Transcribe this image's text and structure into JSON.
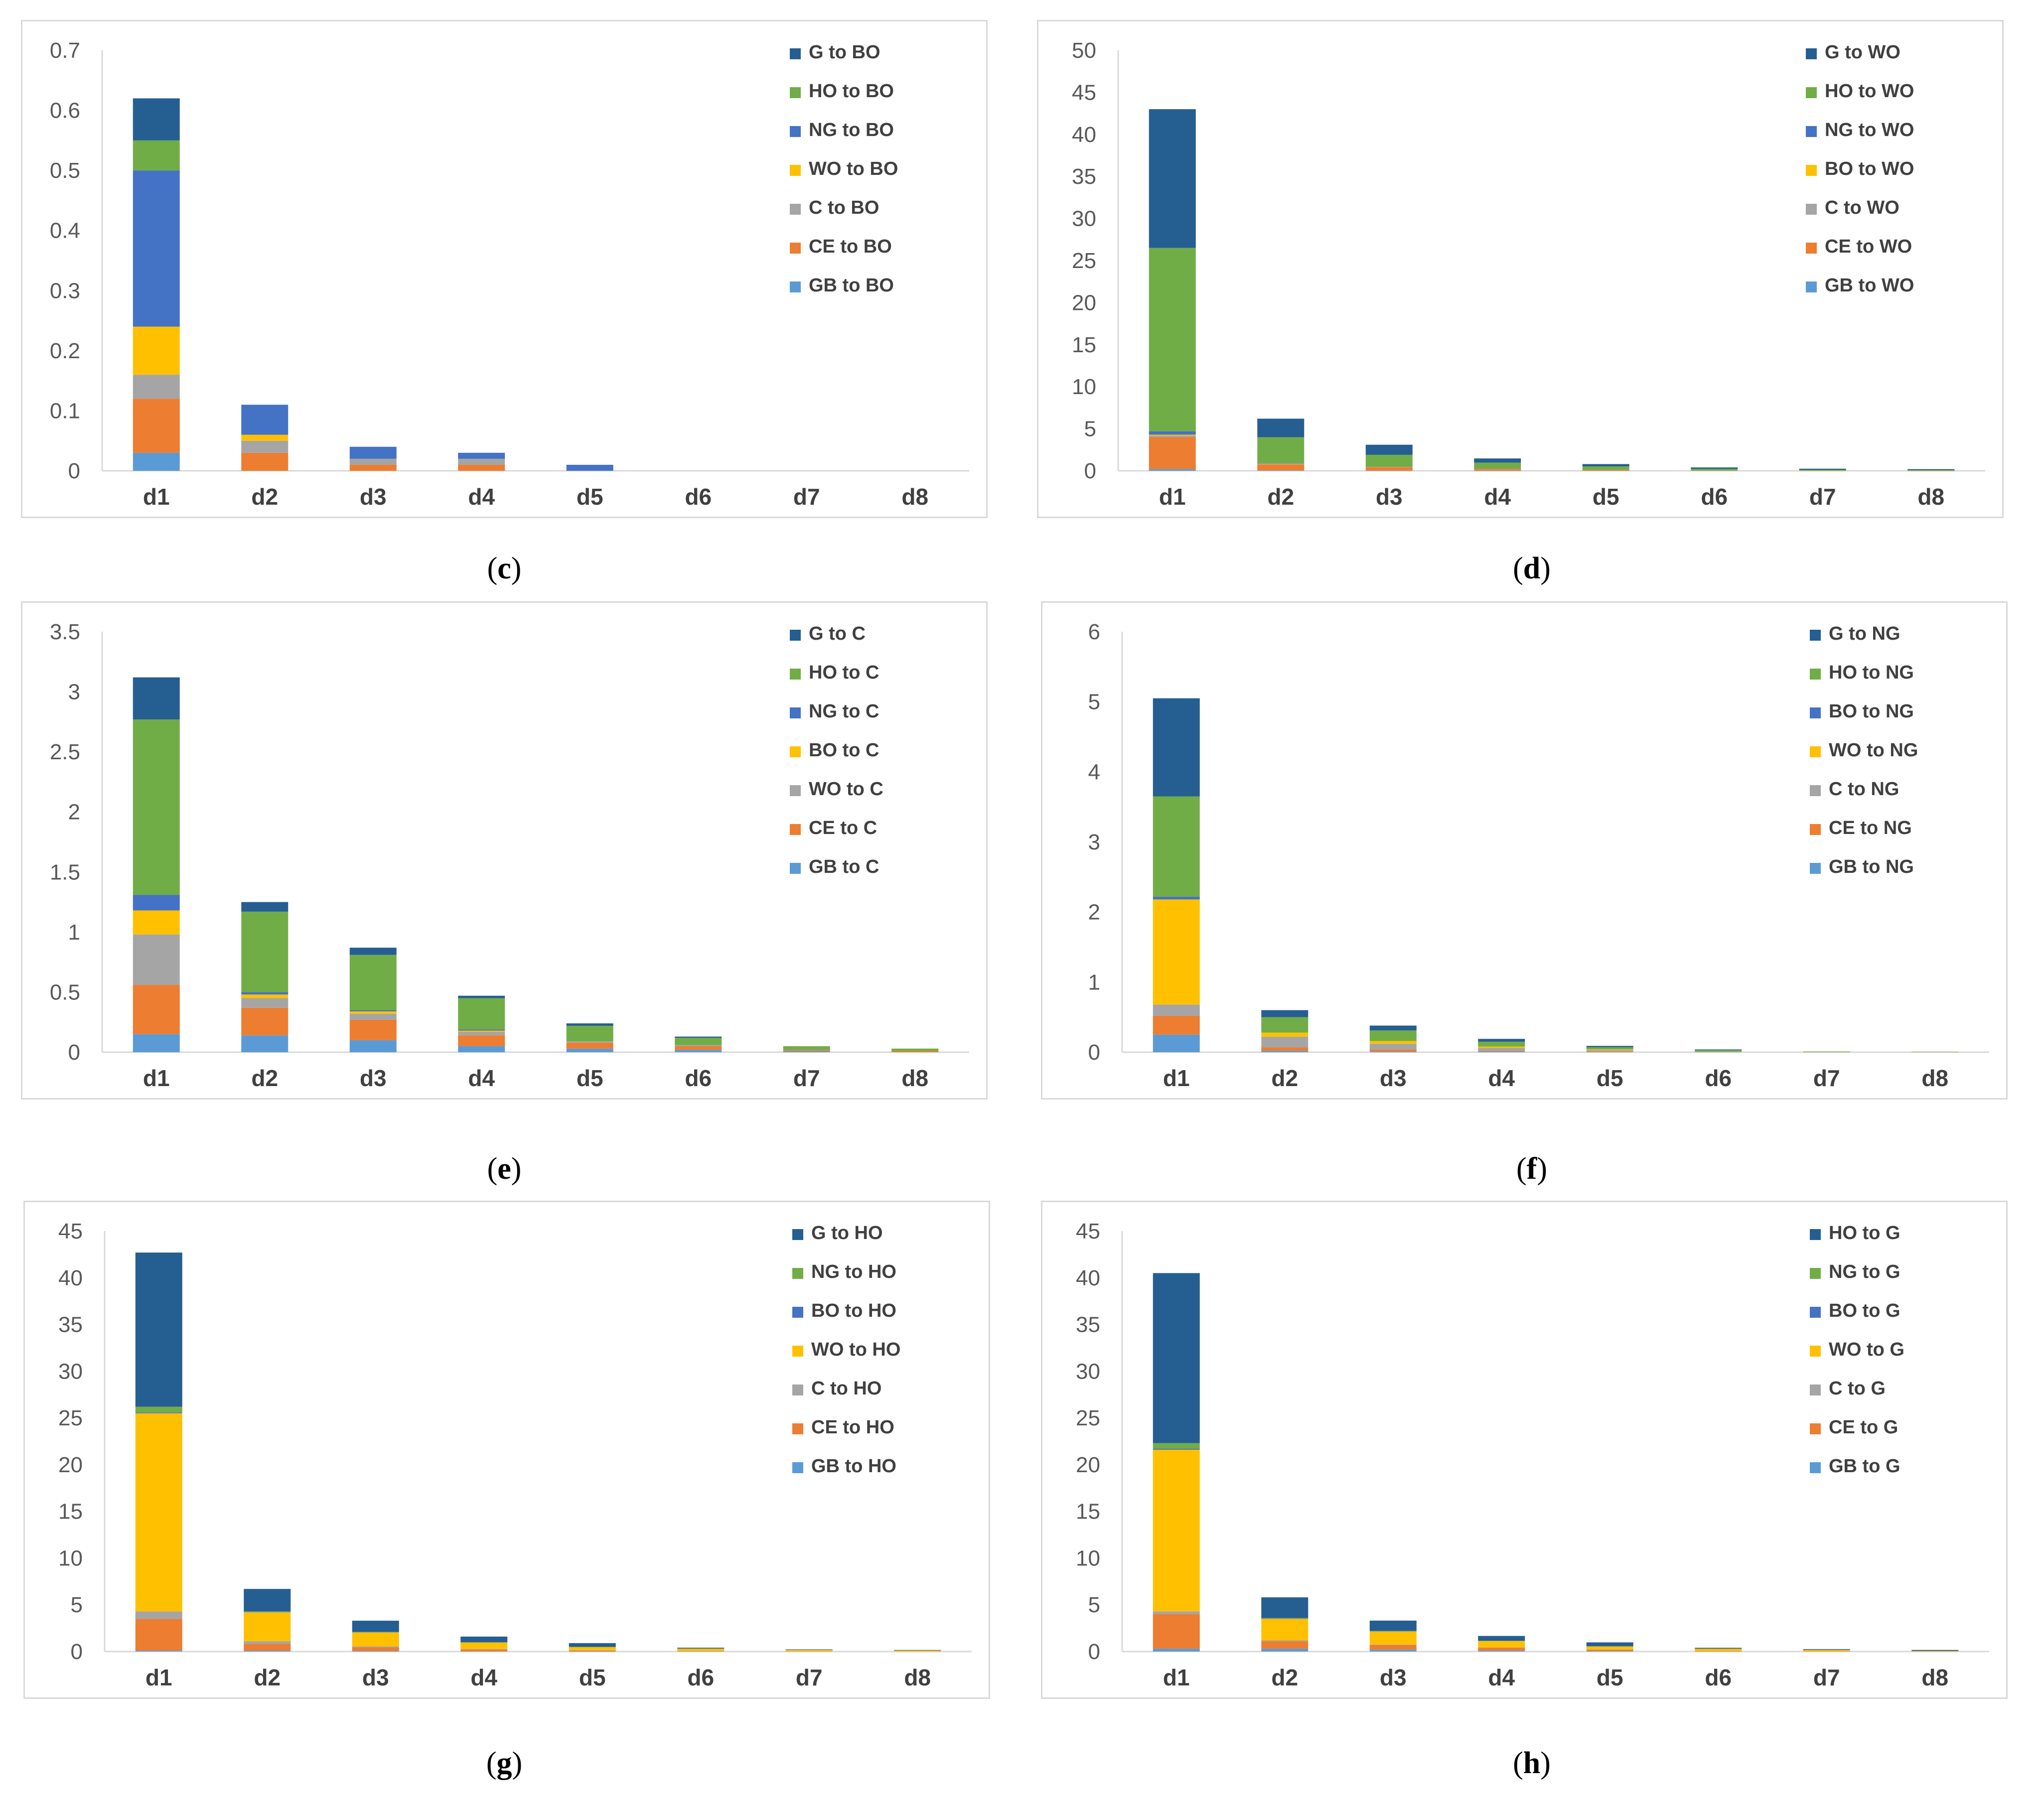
{
  "colors": {
    "GB": "#5b9bd5",
    "CE": "#ed7d31",
    "C": "#a5a5a5",
    "WO": "#ffc000",
    "BO": "#4472c4",
    "NG": "#4472c4",
    "HO": "#70ad47",
    "G": "#255e91",
    "axis": "#d9d9d9",
    "text": "#595959"
  },
  "chart_data": [
    {
      "id": "c",
      "caption_letter": "c",
      "type": "bar",
      "stacked": true,
      "categories": [
        "d1",
        "d2",
        "d3",
        "d4",
        "d5",
        "d6",
        "d7",
        "d8"
      ],
      "ylim": [
        0,
        0.7
      ],
      "yticks": [
        "0",
        "0.1",
        "0.2",
        "0.3",
        "0.4",
        "0.5",
        "0.6",
        "0.7"
      ],
      "series": [
        {
          "name": "GB to BO",
          "color_key": "GB",
          "values": [
            0.03,
            0.0,
            0.0,
            0.0,
            0.0,
            0.0,
            0.0,
            0.0
          ]
        },
        {
          "name": "CE to BO",
          "color_key": "CE",
          "values": [
            0.09,
            0.03,
            0.01,
            0.01,
            0.0,
            0.0,
            0.0,
            0.0
          ]
        },
        {
          "name": "C to BO",
          "color_key": "C",
          "values": [
            0.04,
            0.02,
            0.01,
            0.01,
            0.0,
            0.0,
            0.0,
            0.0
          ]
        },
        {
          "name": "WO to BO",
          "color_key": "WO",
          "values": [
            0.08,
            0.01,
            0.0,
            0.0,
            0.0,
            0.0,
            0.0,
            0.0
          ]
        },
        {
          "name": "NG to BO",
          "color_key": "BO",
          "values": [
            0.26,
            0.05,
            0.02,
            0.01,
            0.01,
            0.0,
            0.0,
            0.0
          ]
        },
        {
          "name": "HO to BO",
          "color_key": "HO",
          "values": [
            0.05,
            0.0,
            0.0,
            0.0,
            0.0,
            0.0,
            0.0,
            0.0
          ]
        },
        {
          "name": "G to BO",
          "color_key": "G",
          "values": [
            0.07,
            0.0,
            0.0,
            0.0,
            0.0,
            0.0,
            0.0,
            0.0
          ]
        }
      ],
      "legend_order": [
        "G to BO",
        "HO to BO",
        "NG to BO",
        "WO to BO",
        "C to BO",
        "CE to BO",
        "GB to BO"
      ]
    },
    {
      "id": "d",
      "caption_letter": "d",
      "type": "bar",
      "stacked": true,
      "categories": [
        "d1",
        "d2",
        "d3",
        "d4",
        "d5",
        "d6",
        "d7",
        "d8"
      ],
      "ylim": [
        0,
        50
      ],
      "yticks": [
        "0",
        "5",
        "10",
        "15",
        "20",
        "25",
        "30",
        "35",
        "40",
        "45",
        "50"
      ],
      "series": [
        {
          "name": "GB to WO",
          "color_key": "GB",
          "values": [
            0.2,
            0.05,
            0.02,
            0.01,
            0.0,
            0.0,
            0.0,
            0.0
          ]
        },
        {
          "name": "CE to WO",
          "color_key": "CE",
          "values": [
            3.8,
            0.7,
            0.4,
            0.2,
            0.1,
            0.03,
            0.02,
            0.01
          ]
        },
        {
          "name": "C  to WO",
          "color_key": "C",
          "values": [
            0.2,
            0.05,
            0.03,
            0.02,
            0.01,
            0.0,
            0.0,
            0.0
          ]
        },
        {
          "name": "BO to WO",
          "color_key": "WO",
          "values": [
            0.1,
            0.05,
            0.03,
            0.02,
            0.01,
            0.0,
            0.0,
            0.0
          ]
        },
        {
          "name": "NG to WO",
          "color_key": "NG",
          "values": [
            0.4,
            0.05,
            0.02,
            0.02,
            0.01,
            0.0,
            0.0,
            0.0
          ]
        },
        {
          "name": "HO to WO",
          "color_key": "HO",
          "values": [
            21.8,
            3.1,
            1.4,
            0.7,
            0.4,
            0.2,
            0.1,
            0.08
          ]
        },
        {
          "name": "G to WO",
          "color_key": "G",
          "values": [
            16.5,
            2.2,
            1.2,
            0.5,
            0.27,
            0.17,
            0.13,
            0.11
          ]
        }
      ],
      "legend_order": [
        "G to WO",
        "HO to WO",
        "NG to WO",
        "BO to WO",
        "C  to WO",
        "CE to WO",
        "GB to WO"
      ]
    },
    {
      "id": "e",
      "caption_letter": "e",
      "type": "bar",
      "stacked": true,
      "categories": [
        "d1",
        "d2",
        "d3",
        "d4",
        "d5",
        "d6",
        "d7",
        "d8"
      ],
      "ylim": [
        0,
        3.5
      ],
      "yticks": [
        "0",
        "0.5",
        "1",
        "1.5",
        "2",
        "2.5",
        "3",
        "3.5"
      ],
      "series": [
        {
          "name": "GB to C",
          "color_key": "GB",
          "values": [
            0.15,
            0.14,
            0.1,
            0.05,
            0.03,
            0.02,
            0.01,
            0.0
          ]
        },
        {
          "name": "CE to C",
          "color_key": "CE",
          "values": [
            0.41,
            0.23,
            0.17,
            0.09,
            0.05,
            0.03,
            0.01,
            0.01
          ]
        },
        {
          "name": "WO to C",
          "color_key": "C",
          "values": [
            0.42,
            0.08,
            0.05,
            0.03,
            0.01,
            0.01,
            0.0,
            0.0
          ]
        },
        {
          "name": "BO to C",
          "color_key": "WO",
          "values": [
            0.2,
            0.03,
            0.02,
            0.01,
            0.0,
            0.0,
            0.0,
            0.0
          ]
        },
        {
          "name": "NG to C",
          "color_key": "NG",
          "values": [
            0.13,
            0.02,
            0.01,
            0.01,
            0.0,
            0.0,
            0.0,
            0.0
          ]
        },
        {
          "name": "HO to C",
          "color_key": "HO",
          "values": [
            1.46,
            0.67,
            0.46,
            0.26,
            0.13,
            0.06,
            0.03,
            0.02
          ]
        },
        {
          "name": "G to C",
          "color_key": "G",
          "values": [
            0.35,
            0.08,
            0.06,
            0.02,
            0.02,
            0.01,
            0.0,
            0.0
          ]
        }
      ],
      "legend_order": [
        "G to C",
        "HO to C",
        "NG to C",
        "BO to C",
        "WO to C",
        "CE to C",
        "GB to C"
      ]
    },
    {
      "id": "f",
      "caption_letter": "f",
      "type": "bar",
      "stacked": true,
      "categories": [
        "d1",
        "d2",
        "d3",
        "d4",
        "d5",
        "d6",
        "d7",
        "d8"
      ],
      "ylim": [
        0,
        6
      ],
      "yticks": [
        "0",
        "1",
        "2",
        "3",
        "4",
        "5",
        "6"
      ],
      "series": [
        {
          "name": "GB to NG",
          "color_key": "GB",
          "values": [
            0.25,
            0.02,
            0.01,
            0.01,
            0.0,
            0.0,
            0.0,
            0.0
          ]
        },
        {
          "name": "CE to NG",
          "color_key": "CE",
          "values": [
            0.27,
            0.05,
            0.03,
            0.01,
            0.01,
            0.0,
            0.0,
            0.0
          ]
        },
        {
          "name": "C to NG",
          "color_key": "C",
          "values": [
            0.16,
            0.15,
            0.08,
            0.04,
            0.02,
            0.01,
            0.0,
            0.0
          ]
        },
        {
          "name": "WO to NG",
          "color_key": "WO",
          "values": [
            1.5,
            0.06,
            0.04,
            0.02,
            0.01,
            0.0,
            0.0,
            0.0
          ]
        },
        {
          "name": "BO to NG",
          "color_key": "BO",
          "values": [
            0.04,
            0.0,
            0.0,
            0.0,
            0.0,
            0.0,
            0.0,
            0.0
          ]
        },
        {
          "name": "HO to NG",
          "color_key": "HO",
          "values": [
            1.43,
            0.22,
            0.15,
            0.07,
            0.03,
            0.02,
            0.01,
            0.005
          ]
        },
        {
          "name": "G to NG",
          "color_key": "G",
          "values": [
            1.4,
            0.1,
            0.07,
            0.04,
            0.02,
            0.01,
            0.0,
            0.0
          ]
        }
      ],
      "legend_order": [
        "G to NG",
        "HO to NG",
        "BO to NG",
        "WO to NG",
        "C to NG",
        "CE to NG",
        "GB to NG"
      ]
    },
    {
      "id": "g",
      "caption_letter": "g",
      "type": "bar",
      "stacked": true,
      "categories": [
        "d1",
        "d2",
        "d3",
        "d4",
        "d5",
        "d6",
        "d7",
        "d8"
      ],
      "ylim": [
        0,
        45
      ],
      "yticks": [
        "0",
        "5",
        "10",
        "15",
        "20",
        "25",
        "30",
        "35",
        "40",
        "45"
      ],
      "series": [
        {
          "name": "GB to HO",
          "color_key": "GB",
          "values": [
            0.1,
            0.1,
            0.05,
            0.02,
            0.01,
            0.0,
            0.0,
            0.0
          ]
        },
        {
          "name": "CE to HO",
          "color_key": "CE",
          "values": [
            3.4,
            0.7,
            0.4,
            0.2,
            0.1,
            0.05,
            0.03,
            0.02
          ]
        },
        {
          "name": "C to HO",
          "color_key": "C",
          "values": [
            0.8,
            0.3,
            0.1,
            0.05,
            0.03,
            0.01,
            0.01,
            0.0
          ]
        },
        {
          "name": "WO to HO",
          "color_key": "WO",
          "values": [
            21.2,
            3.1,
            1.5,
            0.7,
            0.35,
            0.25,
            0.15,
            0.1
          ]
        },
        {
          "name": "BO to HO",
          "color_key": "BO",
          "values": [
            0.1,
            0.05,
            0.02,
            0.01,
            0.0,
            0.0,
            0.0,
            0.0
          ]
        },
        {
          "name": "NG to HO",
          "color_key": "HO",
          "values": [
            0.6,
            0.05,
            0.03,
            0.02,
            0.01,
            0.0,
            0.0,
            0.0
          ]
        },
        {
          "name": "G to HO",
          "color_key": "G",
          "values": [
            16.5,
            2.4,
            1.2,
            0.6,
            0.4,
            0.1,
            0.05,
            0.05
          ]
        }
      ],
      "legend_order": [
        "G to HO",
        "NG to HO",
        "BO to HO",
        "WO to HO",
        "C to HO",
        "CE to HO",
        "GB to HO"
      ]
    },
    {
      "id": "h",
      "caption_letter": "h",
      "type": "bar",
      "stacked": true,
      "categories": [
        "d1",
        "d2",
        "d3",
        "d4",
        "d5",
        "d6",
        "d7",
        "d8"
      ],
      "ylim": [
        0,
        45
      ],
      "yticks": [
        "0",
        "5",
        "10",
        "15",
        "20",
        "25",
        "30",
        "35",
        "40",
        "45"
      ],
      "series": [
        {
          "name": "GB to G",
          "color_key": "GB",
          "values": [
            0.3,
            0.3,
            0.2,
            0.1,
            0.05,
            0.0,
            0.0,
            0.0
          ]
        },
        {
          "name": "CE to G",
          "color_key": "CE",
          "values": [
            3.7,
            0.8,
            0.5,
            0.3,
            0.15,
            0.05,
            0.03,
            0.02
          ]
        },
        {
          "name": "C to G",
          "color_key": "C",
          "values": [
            0.3,
            0.1,
            0.05,
            0.03,
            0.01,
            0.0,
            0.0,
            0.0
          ]
        },
        {
          "name": "WO to G",
          "color_key": "WO",
          "values": [
            17.3,
            2.3,
            1.4,
            0.7,
            0.35,
            0.25,
            0.15,
            0.05
          ]
        },
        {
          "name": "BO to G",
          "color_key": "BO",
          "values": [
            0.1,
            0.05,
            0.03,
            0.02,
            0.01,
            0.0,
            0.0,
            0.0
          ]
        },
        {
          "name": "NG to G",
          "color_key": "HO",
          "values": [
            0.6,
            0.05,
            0.03,
            0.02,
            0.01,
            0.0,
            0.0,
            0.0
          ]
        },
        {
          "name": "HO to G",
          "color_key": "G",
          "values": [
            18.2,
            2.2,
            1.1,
            0.5,
            0.4,
            0.1,
            0.08,
            0.1
          ]
        }
      ],
      "legend_order": [
        "HO to G",
        "NG to G",
        "BO to G",
        "WO to G",
        "C to G",
        "CE to G",
        "GB to G"
      ]
    }
  ]
}
